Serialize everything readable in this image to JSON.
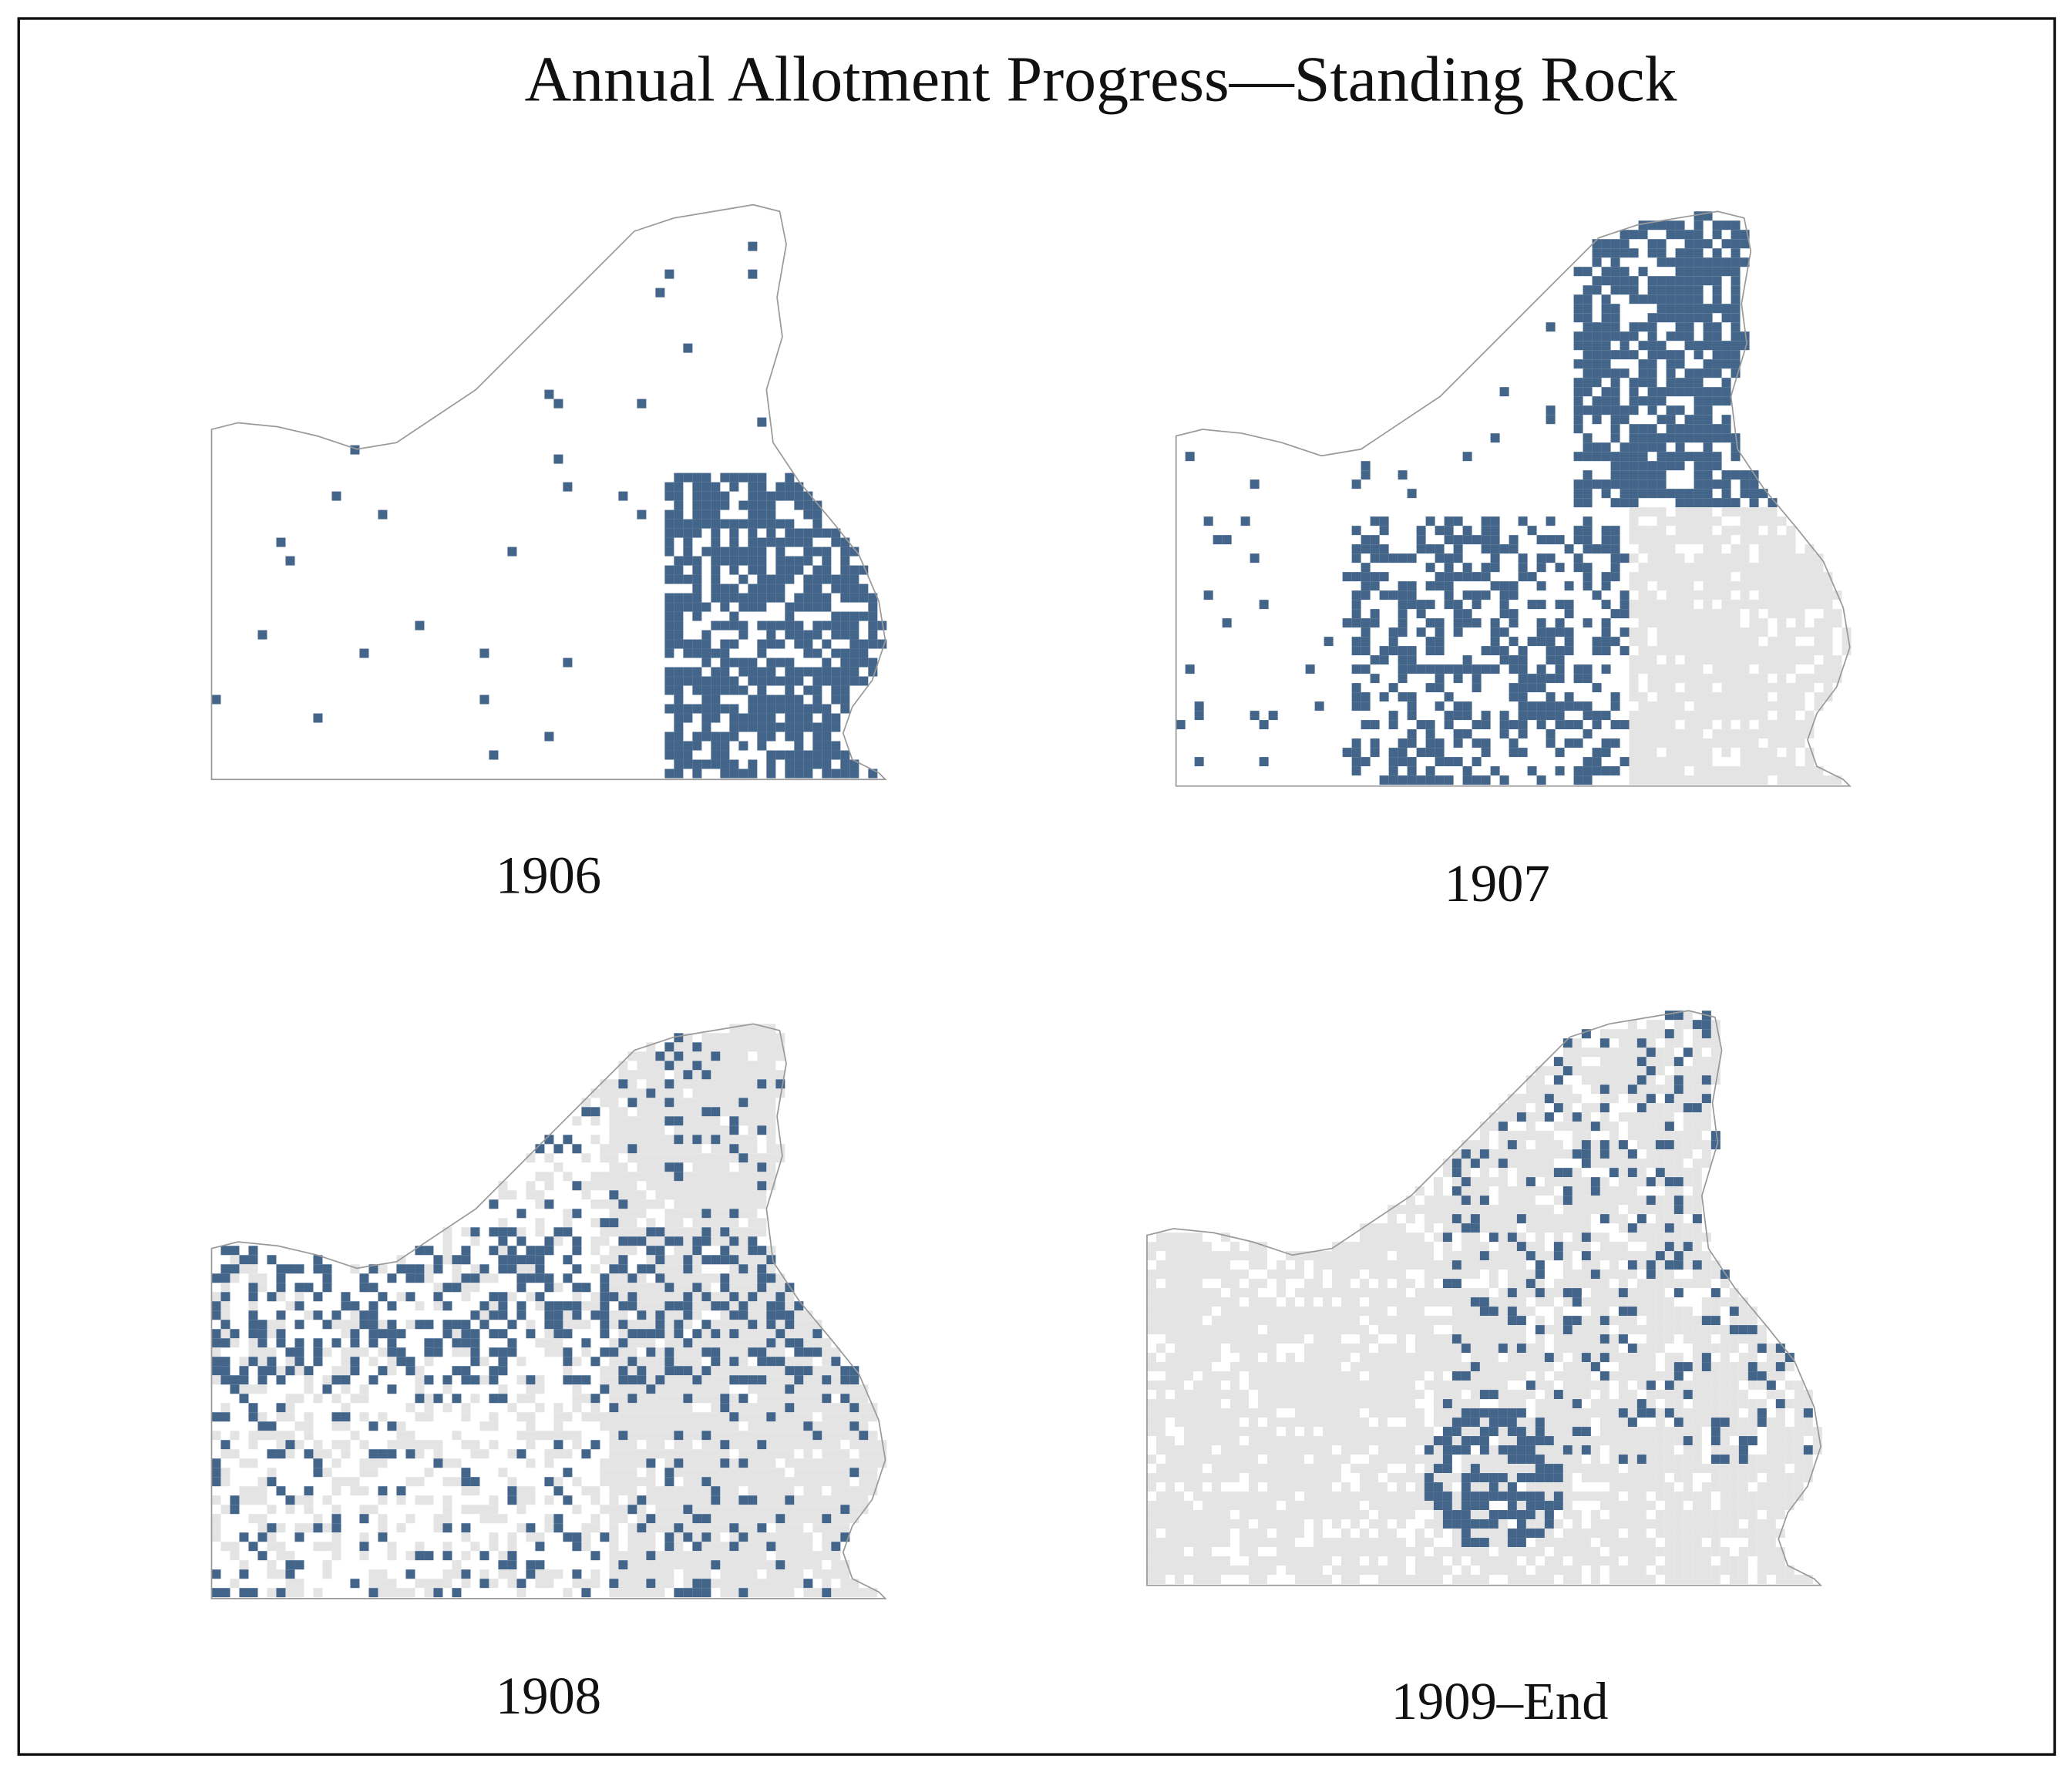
{
  "title": "Annual Allotment Progress—Standing Rock",
  "panels": [
    {
      "label": "1906"
    },
    {
      "label": "1907"
    },
    {
      "label": "1908"
    },
    {
      "label": "1909–End"
    }
  ]
}
